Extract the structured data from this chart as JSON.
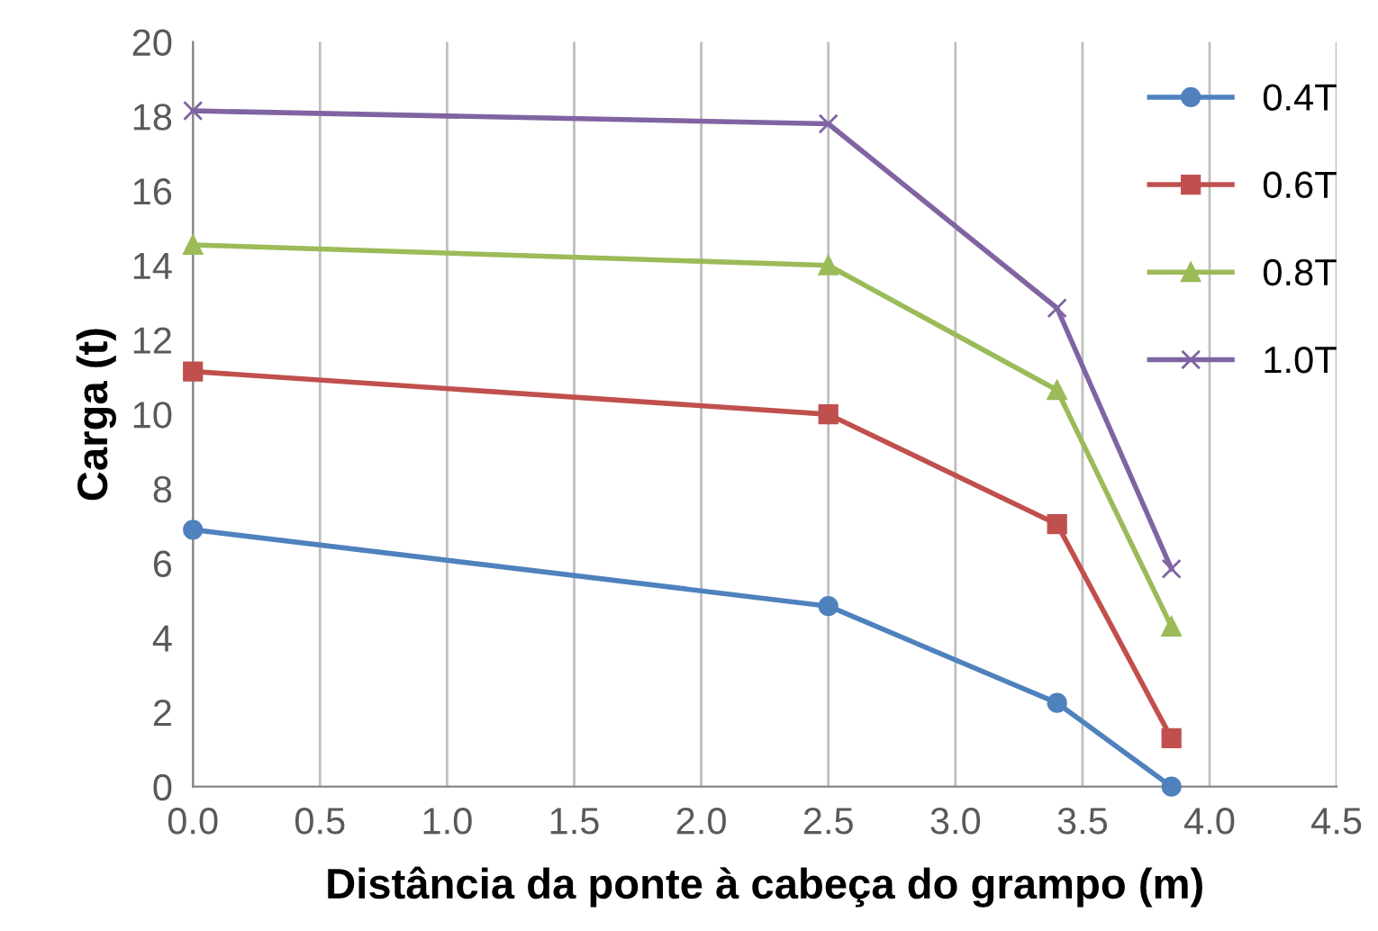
{
  "chart_data": {
    "type": "line",
    "xlabel": "Distância da ponte à cabeça do grampo (m)",
    "ylabel": "Carga (t)",
    "x": [
      0,
      2.5,
      3.4,
      3.85
    ],
    "series": [
      {
        "name": "0.4T",
        "color": "#4f81bd",
        "marker": "circle",
        "values": [
          6.9,
          4.85,
          2.25,
          0.0
        ]
      },
      {
        "name": "0.6T",
        "color": "#c0504d",
        "marker": "square",
        "values": [
          11.15,
          10.0,
          7.05,
          1.3
        ]
      },
      {
        "name": "0.8T",
        "color": "#9bbb59",
        "marker": "triangle",
        "values": [
          14.55,
          14.0,
          10.65,
          4.3
        ]
      },
      {
        "name": "1.0T",
        "color": "#8064a2",
        "marker": "cross",
        "values": [
          18.15,
          17.8,
          12.85,
          5.85
        ]
      }
    ],
    "xlim": [
      0,
      4.5
    ],
    "xticks": [
      {
        "value": 0,
        "label": "0.0"
      },
      0.5,
      {
        "value": 1,
        "label": "1.0"
      },
      1.5,
      {
        "value": 2,
        "label": "2.0"
      },
      2.5,
      {
        "value": 3,
        "label": "3.0"
      },
      3.5,
      {
        "value": 4,
        "label": "4.0"
      },
      4.5
    ],
    "ylim": [
      0,
      20
    ],
    "yticks": [
      0,
      2,
      4,
      6,
      8,
      10,
      12,
      14,
      16,
      18,
      20
    ],
    "grid": "x",
    "legend": "right"
  }
}
